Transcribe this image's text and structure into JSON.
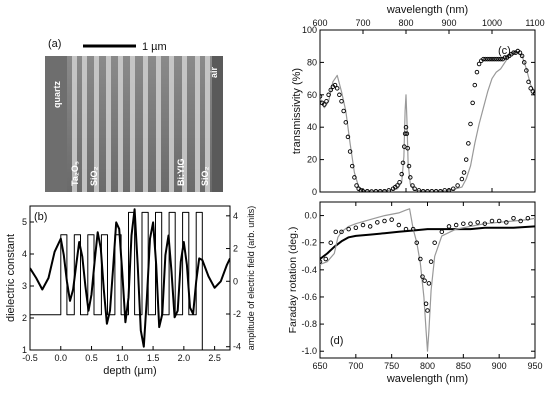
{
  "panel_a": {
    "label": "(a)",
    "scalebar_label": "1 µm",
    "layers": {
      "quartz": "quartz",
      "air": "air",
      "ta2o5": "Ta₂O₅",
      "sio2_left": "SiO₂",
      "biyig": "Bi:YIG",
      "sio2_right": "SiO₂"
    }
  },
  "chart_data": [
    {
      "id": "b",
      "type": "line",
      "label": "(b)",
      "xlabel": "depth (µm)",
      "ylabel_left": "dielectric constant",
      "ylabel_right": "amplitude of electric field (arb. units)",
      "xlim": [
        -0.5,
        2.75
      ],
      "xticks": [
        -0.5,
        0.0,
        0.5,
        1.0,
        1.5,
        2.0,
        2.5
      ],
      "ylim_left": [
        1,
        5.5
      ],
      "yticks_left": [
        1,
        2,
        3,
        4,
        5
      ],
      "ylim_right": [
        -4.2,
        4.6
      ],
      "yticks_right": [
        -4,
        -2,
        0,
        2,
        4
      ],
      "series": [
        {
          "axis": "left",
          "style": "steps",
          "x": [
            -0.5,
            0.0,
            0.0,
            0.1,
            0.1,
            0.22,
            0.22,
            0.32,
            0.32,
            0.44,
            0.44,
            0.54,
            0.54,
            0.66,
            0.66,
            0.76,
            0.76,
            0.88,
            0.88,
            0.98,
            0.98,
            1.1,
            1.1,
            1.2,
            1.2,
            1.32,
            1.32,
            1.42,
            1.42,
            1.54,
            1.54,
            1.64,
            1.64,
            1.76,
            1.76,
            1.86,
            1.86,
            1.98,
            1.98,
            2.08,
            2.08,
            2.2,
            2.2,
            2.3,
            2.3,
            2.75
          ],
          "y": [
            2.1,
            2.1,
            4.6,
            4.6,
            2.1,
            2.1,
            4.6,
            4.6,
            2.1,
            2.1,
            4.6,
            4.6,
            2.1,
            2.1,
            4.6,
            4.6,
            2.1,
            2.1,
            4.6,
            4.6,
            2.1,
            2.1,
            5.3,
            5.3,
            2.1,
            2.1,
            5.3,
            5.3,
            2.1,
            2.1,
            5.3,
            5.3,
            2.1,
            2.1,
            5.3,
            5.3,
            2.1,
            2.1,
            5.3,
            5.3,
            2.1,
            2.1,
            5.3,
            5.3,
            1.0,
            1.0
          ]
        },
        {
          "axis": "right",
          "style": "thick",
          "x": [
            -0.5,
            -0.4,
            -0.3,
            -0.2,
            -0.1,
            0.0,
            0.05,
            0.1,
            0.15,
            0.2,
            0.25,
            0.3,
            0.35,
            0.4,
            0.45,
            0.5,
            0.55,
            0.6,
            0.65,
            0.7,
            0.75,
            0.8,
            0.85,
            0.9,
            0.95,
            1.0,
            1.05,
            1.1,
            1.15,
            1.2,
            1.25,
            1.3,
            1.35,
            1.4,
            1.45,
            1.5,
            1.55,
            1.6,
            1.65,
            1.7,
            1.75,
            1.8,
            1.85,
            1.9,
            1.95,
            2.0,
            2.05,
            2.1,
            2.15,
            2.2,
            2.25,
            2.3,
            2.4,
            2.5,
            2.6,
            2.7,
            2.75
          ],
          "y": [
            0.8,
            0.2,
            -0.5,
            0.2,
            1.8,
            2.6,
            1.6,
            0.0,
            -1.2,
            -0.5,
            1.0,
            2.4,
            1.5,
            -0.3,
            -1.8,
            -0.8,
            1.2,
            3.0,
            2.0,
            -0.5,
            -2.6,
            -1.8,
            0.8,
            3.6,
            3.2,
            0.5,
            -2.5,
            -1.0,
            2.8,
            4.4,
            1.0,
            -3.0,
            -4.0,
            -1.0,
            2.6,
            3.6,
            1.0,
            -2.8,
            -2.0,
            1.6,
            2.8,
            0.6,
            -2.2,
            -1.8,
            1.2,
            2.4,
            1.0,
            -1.6,
            -2.0,
            0.0,
            1.4,
            1.3,
            0.3,
            -0.4,
            0.0,
            1.0,
            1.4
          ]
        }
      ]
    },
    {
      "id": "c",
      "type": "line",
      "label": "(c)",
      "xlabel": "wavelength (nm)",
      "ylabel": "transmissivity (%)",
      "xlim": [
        600,
        1100
      ],
      "xticks": [
        600,
        700,
        800,
        900,
        1000,
        1100
      ],
      "ylim": [
        0,
        100
      ],
      "yticks": [
        0,
        20,
        40,
        60,
        80,
        100
      ],
      "series": [
        {
          "style": "gray",
          "x": [
            600,
            610,
            620,
            630,
            640,
            650,
            660,
            670,
            680,
            690,
            700,
            720,
            760,
            780,
            790,
            795,
            798,
            800,
            802,
            805,
            810,
            820,
            860,
            900,
            930,
            940,
            950,
            960,
            970,
            980,
            990,
            1000,
            1010,
            1020,
            1030,
            1040,
            1050,
            1060,
            1070,
            1080,
            1090,
            1100
          ],
          "y": [
            58,
            52,
            56,
            68,
            72,
            62,
            50,
            30,
            12,
            3,
            1,
            0.5,
            1,
            2,
            6,
            22,
            50,
            60,
            45,
            18,
            5,
            1,
            0.5,
            0.8,
            3,
            8,
            16,
            30,
            42,
            52,
            62,
            70,
            74,
            76,
            80,
            84,
            86,
            86,
            84,
            76,
            66,
            62
          ]
        },
        {
          "style": "circles",
          "x": [
            600,
            605,
            610,
            615,
            620,
            625,
            630,
            635,
            640,
            645,
            650,
            655,
            660,
            665,
            670,
            675,
            680,
            685,
            690,
            695,
            700,
            710,
            720,
            730,
            740,
            750,
            760,
            770,
            775,
            780,
            785,
            790,
            793,
            796,
            798,
            800,
            802,
            804,
            807,
            810,
            815,
            820,
            830,
            840,
            850,
            860,
            870,
            880,
            890,
            900,
            910,
            920,
            930,
            935,
            940,
            945,
            950,
            955,
            960,
            965,
            970,
            975,
            980,
            985,
            990,
            995,
            1000,
            1005,
            1010,
            1015,
            1020,
            1025,
            1030,
            1035,
            1040,
            1045,
            1050,
            1055,
            1060,
            1065,
            1070,
            1075,
            1080,
            1085,
            1090,
            1095,
            1100
          ],
          "y": [
            59,
            55,
            54,
            56,
            60,
            63,
            65,
            66,
            64,
            60,
            56,
            50,
            43,
            34,
            25,
            16,
            9,
            4,
            2,
            1,
            0.5,
            0.5,
            0.3,
            0.5,
            0.5,
            0.5,
            1,
            2,
            3,
            4,
            6,
            11,
            18,
            28,
            36,
            40,
            36,
            27,
            16,
            9,
            4,
            2,
            1,
            0.5,
            0.5,
            0.5,
            0.5,
            0.5,
            1,
            1,
            2,
            4,
            8,
            12,
            20,
            30,
            42,
            55,
            66,
            74,
            79,
            81,
            82,
            82,
            82,
            82,
            82,
            82,
            82,
            82,
            82,
            82,
            83,
            83,
            84,
            85,
            86,
            86,
            87,
            86,
            84,
            80,
            75,
            68,
            64,
            62,
            61
          ]
        }
      ]
    },
    {
      "id": "d",
      "type": "line",
      "label": "(d)",
      "xlabel": "wavelength (nm)",
      "ylabel": "Faraday rotation (deg.)",
      "xlim": [
        650,
        950
      ],
      "xticks": [
        650,
        700,
        750,
        800,
        850,
        900,
        950
      ],
      "ylim": [
        -1.05,
        0.1
      ],
      "yticks": [
        -1.0,
        -0.8,
        -0.6,
        -0.4,
        -0.2,
        0.0
      ],
      "series": [
        {
          "style": "thick",
          "x": [
            650,
            660,
            670,
            680,
            690,
            700,
            720,
            740,
            760,
            780,
            800,
            820,
            840,
            860,
            880,
            900,
            920,
            950
          ],
          "y": [
            -0.32,
            -0.28,
            -0.23,
            -0.19,
            -0.16,
            -0.15,
            -0.14,
            -0.13,
            -0.12,
            -0.11,
            -0.1,
            -0.1,
            -0.1,
            -0.1,
            -0.09,
            -0.09,
            -0.09,
            -0.08
          ]
        },
        {
          "style": "gray",
          "x": [
            650,
            660,
            670,
            675,
            680,
            690,
            700,
            720,
            740,
            760,
            770,
            775,
            780,
            785,
            790,
            795,
            798,
            800,
            802,
            805,
            810,
            820,
            840,
            860,
            880,
            900,
            920,
            940,
            950
          ],
          "y": [
            -0.36,
            -0.34,
            -0.28,
            -0.16,
            -0.12,
            -0.08,
            -0.06,
            -0.03,
            0.0,
            0.02,
            0.04,
            0.05,
            -0.1,
            -0.2,
            -0.35,
            -0.6,
            -0.85,
            -1.0,
            -0.85,
            -0.55,
            -0.3,
            -0.15,
            -0.1,
            -0.08,
            -0.06,
            -0.05,
            -0.04,
            -0.03,
            -0.02
          ]
        },
        {
          "style": "circles",
          "x": [
            650,
            658,
            665,
            672,
            680,
            690,
            700,
            710,
            720,
            730,
            740,
            750,
            760,
            770,
            780,
            785,
            790,
            793,
            796,
            798,
            800,
            802,
            805,
            810,
            820,
            830,
            840,
            850,
            860,
            870,
            880,
            890,
            900,
            910,
            920,
            930,
            940
          ],
          "y": [
            -0.34,
            -0.32,
            -0.2,
            -0.12,
            -0.12,
            -0.1,
            -0.09,
            -0.07,
            -0.08,
            -0.05,
            -0.04,
            -0.03,
            -0.07,
            -0.1,
            -0.1,
            -0.2,
            -0.32,
            -0.45,
            -0.48,
            -0.65,
            -0.7,
            -0.5,
            -0.34,
            -0.2,
            -0.12,
            -0.08,
            -0.07,
            -0.06,
            -0.06,
            -0.05,
            -0.06,
            -0.04,
            -0.04,
            -0.05,
            -0.02,
            -0.04,
            -0.02
          ]
        }
      ]
    }
  ]
}
